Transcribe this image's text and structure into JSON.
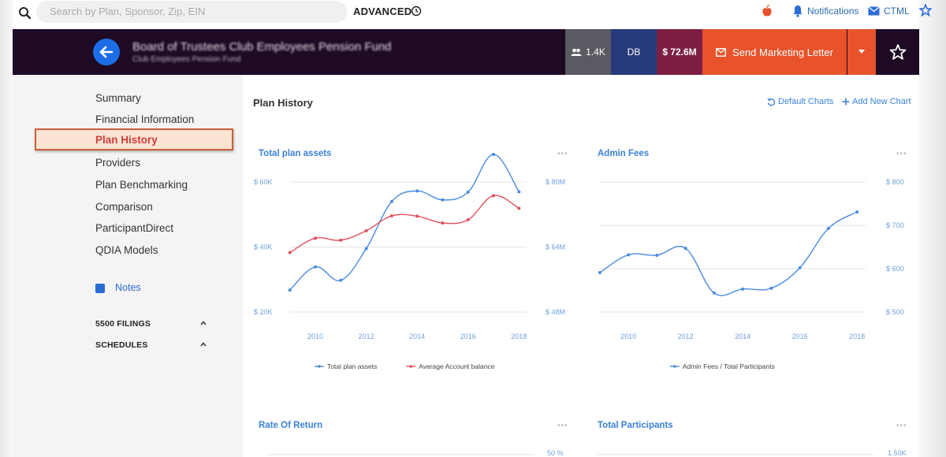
{
  "topbar": {
    "search_placeholder": "Search by Plan, Sponsor, Zip, EIN",
    "advanced_label": "ADVANCED",
    "notifications_label": "Notifications",
    "ctml_label": "CTML"
  },
  "header": {
    "plan_name": "Board of Trustees Club Employees Pension Fund",
    "plan_subtitle": "Club Employees Pension Fund",
    "participants_badge": "1.4K",
    "plan_type_badge": "DB",
    "assets_badge": "$ 72.6M",
    "send_button_label": "Send Marketing Letter"
  },
  "sidebar": {
    "items": [
      {
        "label": "Summary"
      },
      {
        "label": "Financial Information"
      },
      {
        "label": "Plan History",
        "active": true
      },
      {
        "label": "Providers"
      },
      {
        "label": "Plan Benchmarking"
      },
      {
        "label": "Comparison"
      },
      {
        "label": "ParticipantDirect"
      },
      {
        "label": "QDIA Models"
      }
    ],
    "notes_label": "Notes",
    "sections": [
      "5500 FILINGS",
      "SCHEDULES"
    ]
  },
  "main": {
    "title": "Plan History",
    "default_charts_label": "Default Charts",
    "add_chart_label": "Add New Chart",
    "panels": [
      {
        "title": "Total plan assets",
        "more": "•••"
      },
      {
        "title": "Admin Fees",
        "more": "•••"
      },
      {
        "title": "Rate Of Return",
        "more": "•••"
      },
      {
        "title": "Total Participants",
        "more": "•••"
      }
    ]
  },
  "colors": {
    "accent_blue": "#3b82d6",
    "header_bg": "#1e0a24",
    "send_button": "#e8532b",
    "active_nav_text": "#d23b3b",
    "series_blue": "#4a8be0",
    "series_red": "#e0505a"
  },
  "chart_data": [
    {
      "type": "line",
      "title": "Total plan assets",
      "x": [
        2009,
        2010,
        2011,
        2012,
        2013,
        2014,
        2015,
        2016,
        2017,
        2018
      ],
      "x_ticks": [
        "2010",
        "2012",
        "2014",
        "2016",
        "2018"
      ],
      "left_axis_ticks": [
        "$ 60K",
        "$ 40K",
        "$ 20K"
      ],
      "right_axis_ticks": [
        "$ 80M",
        "$ 64M",
        "$ 48M"
      ],
      "series": [
        {
          "name": "Total plan assets",
          "axis": "right",
          "color": "#4a8be0",
          "values": [
            53.4,
            59.1,
            55.8,
            63.6,
            75.2,
            77.8,
            75.6,
            77.5,
            86.8,
            77.6
          ]
        },
        {
          "name": "Average Account balance",
          "axis": "left",
          "color": "#e0505a",
          "values": [
            38.3,
            42.7,
            42.1,
            45.0,
            49.6,
            49.5,
            47.4,
            48.4,
            55.8,
            51.9
          ]
        }
      ],
      "ylim_left": [
        20,
        60
      ],
      "ylim_right": [
        48,
        80
      ],
      "legend": "bottom"
    },
    {
      "type": "line",
      "title": "Admin Fees",
      "x": [
        2009,
        2010,
        2011,
        2012,
        2013,
        2014,
        2015,
        2016,
        2017,
        2018
      ],
      "x_ticks": [
        "2010",
        "2012",
        "2014",
        "2016",
        "2018"
      ],
      "right_axis_ticks": [
        "$ 800",
        "$ 700",
        "$ 600",
        "$ 500"
      ],
      "series": [
        {
          "name": "Admin Fees / Total Participants",
          "axis": "right",
          "color": "#4a8be0",
          "values": [
            591,
            632,
            631,
            647,
            544,
            553,
            555,
            602,
            693,
            731
          ]
        }
      ],
      "ylim_right": [
        500,
        800
      ],
      "legend": "bottom"
    },
    {
      "type": "line",
      "title": "Rate Of Return",
      "right_axis_ticks": [
        "50 %"
      ],
      "series": []
    },
    {
      "type": "line",
      "title": "Total Participants",
      "right_axis_ticks": [
        "1.50K"
      ],
      "series": []
    }
  ]
}
